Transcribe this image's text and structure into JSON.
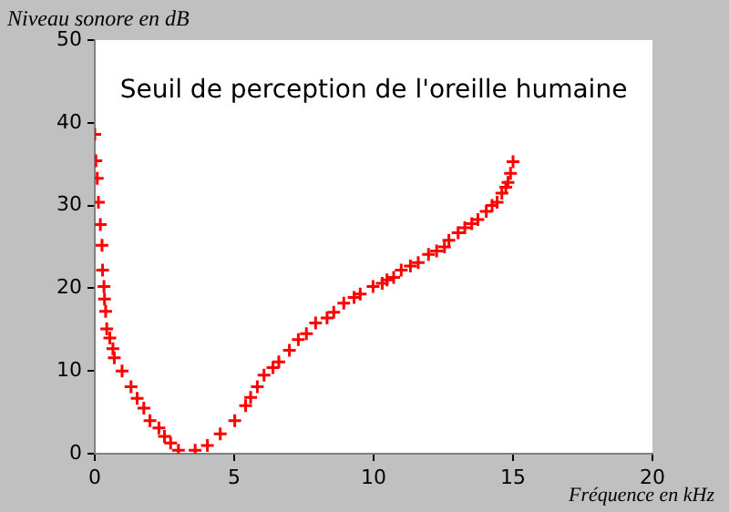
{
  "chart_data": {
    "type": "scatter",
    "xlabel": "Fréquence en kHz",
    "ylabel": "Niveau sonore en dB",
    "annotations": [
      "Seuil de perception de l'oreille humaine"
    ],
    "x": [
      0,
      0.04,
      0.09,
      0.13,
      0.2,
      0.26,
      0.28,
      0.33,
      0.35,
      0.39,
      0.43,
      0.54,
      0.65,
      0.7,
      0.98,
      1.3,
      1.52,
      1.76,
      1.98,
      2.3,
      2.5,
      2.72,
      3.0,
      3.6,
      4.04,
      4.5,
      5.02,
      5.41,
      5.59,
      5.83,
      6.07,
      6.39,
      6.6,
      6.98,
      7.3,
      7.59,
      7.92,
      8.33,
      8.57,
      8.93,
      9.3,
      9.52,
      9.98,
      10.31,
      10.48,
      10.72,
      10.99,
      11.32,
      11.6,
      11.97,
      12.26,
      12.54,
      12.7,
      13.03,
      13.27,
      13.52,
      13.74,
      14.04,
      14.25,
      14.43,
      14.6,
      14.74,
      14.82,
      14.91,
      15.0
    ],
    "series": [
      {
        "color": "#ff0000",
        "values": [
          38.6,
          35.4,
          33.3,
          30.4,
          27.7,
          25.2,
          22.2,
          20.2,
          18.7,
          17.2,
          15.1,
          14.0,
          12.7,
          11.6,
          10.0,
          8.1,
          6.7,
          5.5,
          4.0,
          3.1,
          2.1,
          1.3,
          0.4,
          0.4,
          1.0,
          2.4,
          4.0,
          5.8,
          6.8,
          8.1,
          9.5,
          10.4,
          11.1,
          12.5,
          13.8,
          14.5,
          15.8,
          16.4,
          17.1,
          18.2,
          18.9,
          19.3,
          20.2,
          20.6,
          21.0,
          21.3,
          22.2,
          22.7,
          23.1,
          24.1,
          24.5,
          25.0,
          25.8,
          26.7,
          27.3,
          27.8,
          28.3,
          29.3,
          30.0,
          30.4,
          31.5,
          32.2,
          32.8,
          33.9,
          35.3
        ]
      }
    ],
    "xlim": [
      0,
      20
    ],
    "xticks": [
      0,
      5,
      10,
      15,
      20
    ],
    "ylim": [
      0,
      50
    ],
    "yticks": [
      0,
      10,
      20,
      30,
      40,
      50
    ],
    "grid": false,
    "legend": false,
    "marker": "cross"
  }
}
